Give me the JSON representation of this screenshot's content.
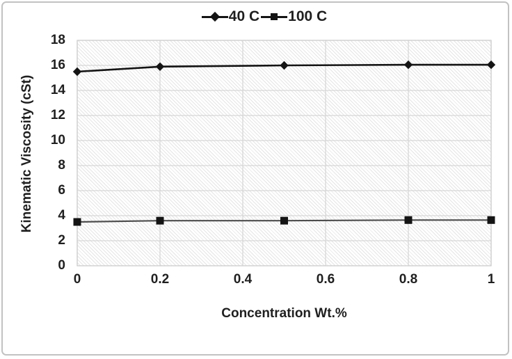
{
  "figure": {
    "background": "#ffffff",
    "frame_color": "#c2c2c2"
  },
  "legend": {
    "position": "top-center",
    "items": [
      {
        "label": "40 C",
        "marker": "diamond"
      },
      {
        "label": "100 C",
        "marker": "square"
      }
    ]
  },
  "chart_data": {
    "type": "line",
    "x": [
      0,
      0.2,
      0.5,
      0.8,
      1
    ],
    "series": [
      {
        "name": "40 C",
        "marker": "diamond",
        "color": "#141414",
        "line_width": 2.6,
        "values": [
          15.5,
          15.9,
          16.0,
          16.05,
          16.05
        ]
      },
      {
        "name": "100 C",
        "marker": "square",
        "color": "#4d4d4d",
        "line_width": 2.2,
        "values": [
          3.5,
          3.6,
          3.6,
          3.65,
          3.65
        ]
      }
    ],
    "title": "",
    "xlabel": "Concentration Wt.%",
    "ylabel": "Kinematic Viscosity (cSt)",
    "xlim": [
      0,
      1
    ],
    "ylim": [
      0,
      18
    ],
    "xticks": [
      0,
      0.2,
      0.4,
      0.6,
      0.8,
      1
    ],
    "xtick_labels": [
      "0",
      "0.2",
      "0.4",
      "0.6",
      "0.8",
      "1"
    ],
    "yticks": [
      0,
      2,
      4,
      6,
      8,
      10,
      12,
      14,
      16,
      18
    ],
    "ytick_labels": [
      "0",
      "2",
      "4",
      "6",
      "8",
      "10",
      "12",
      "14",
      "16",
      "18"
    ],
    "grid": true,
    "grid_color": "#d7d7d7",
    "plot_border_color": "#d0d0d0",
    "hatch_background": "#e5e5e5",
    "text_color": "#1f1f1f",
    "legend_position": "top-center"
  }
}
